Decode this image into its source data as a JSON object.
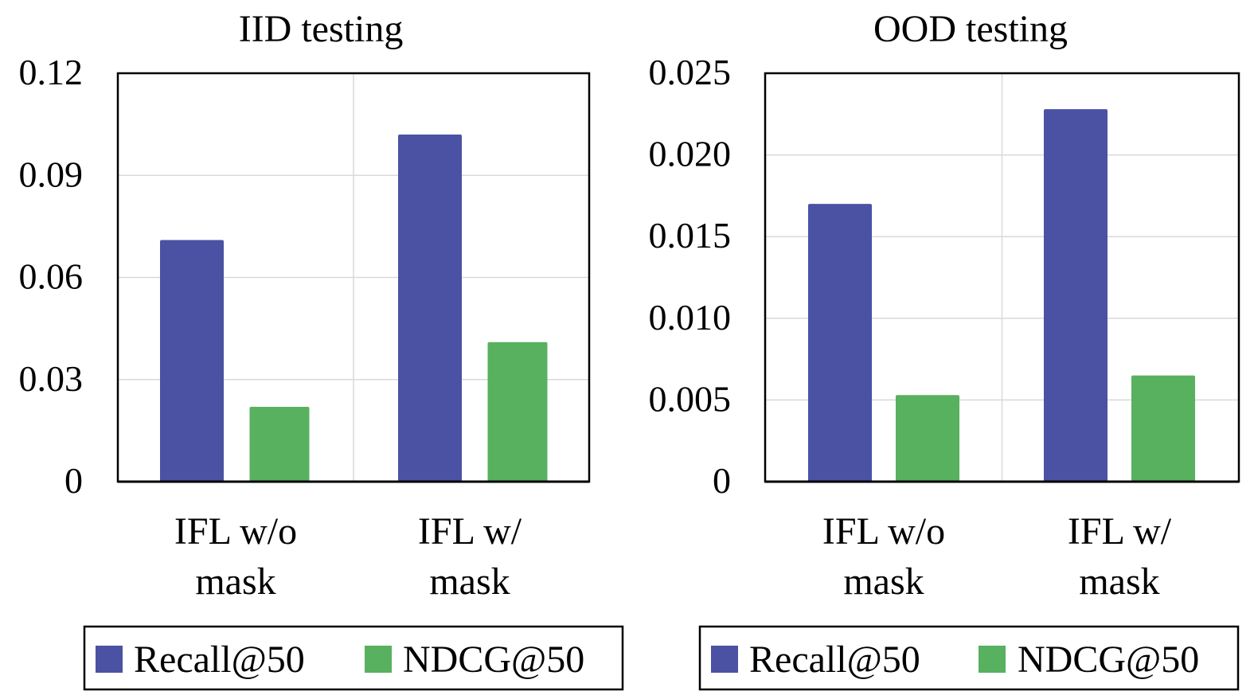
{
  "colors": {
    "recall": "#4b51a3",
    "ndcg": "#57b15f",
    "grid": "#d9d9d9",
    "axis": "#000000"
  },
  "chart_data": [
    {
      "type": "bar",
      "title": "IID testing",
      "categories": [
        [
          "IFL w/o",
          "mask"
        ],
        [
          "IFL w/",
          "mask"
        ]
      ],
      "series": [
        {
          "name": "Recall@50",
          "values": [
            0.071,
            0.102
          ]
        },
        {
          "name": "NDCG@50",
          "values": [
            0.022,
            0.041
          ]
        }
      ],
      "ylim": [
        0,
        0.12
      ],
      "yticks": [
        "0",
        "0.03",
        "0.06",
        "0.09",
        "0.12"
      ],
      "ytick_values": [
        0,
        0.03,
        0.06,
        0.09,
        0.12
      ],
      "grid": true,
      "legend": "bottom"
    },
    {
      "type": "bar",
      "title": "OOD testing",
      "categories": [
        [
          "IFL w/o",
          "mask"
        ],
        [
          "IFL w/",
          "mask"
        ]
      ],
      "series": [
        {
          "name": "Recall@50",
          "values": [
            0.017,
            0.0228
          ]
        },
        {
          "name": "NDCG@50",
          "values": [
            0.0053,
            0.0065
          ]
        }
      ],
      "ylim": [
        0,
        0.025
      ],
      "yticks": [
        "0",
        "0.005",
        "0.010",
        "0.015",
        "0.020",
        "0.025"
      ],
      "ytick_values": [
        0,
        0.005,
        0.01,
        0.015,
        0.02,
        0.025
      ],
      "grid": true,
      "legend": "bottom"
    }
  ]
}
